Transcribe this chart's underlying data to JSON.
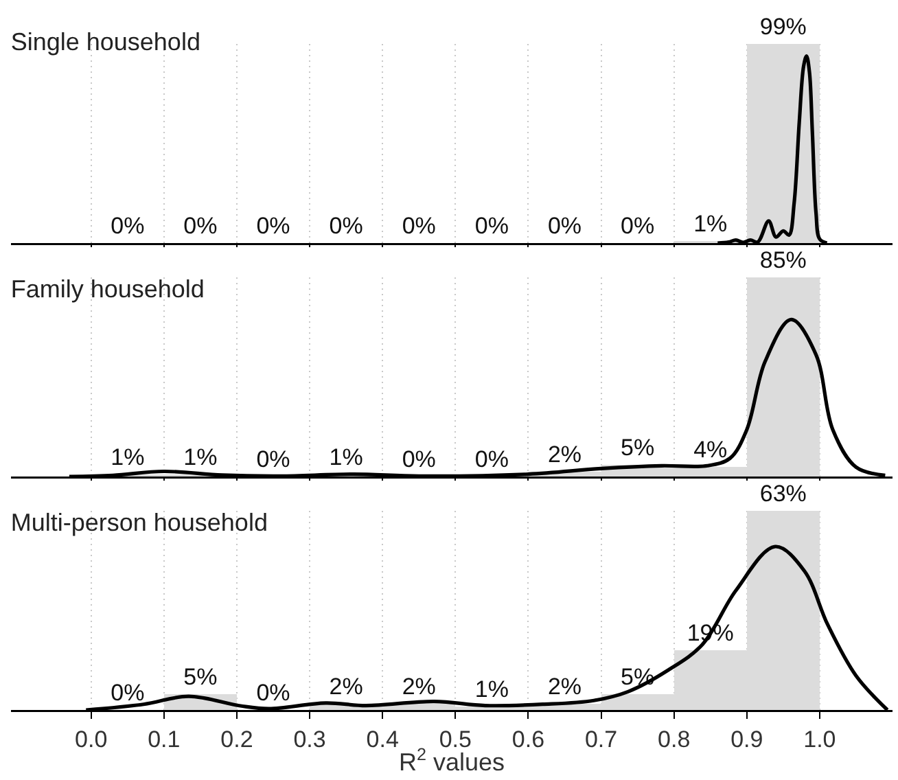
{
  "chart_data": [
    {
      "type": "histogram",
      "title": "Single household",
      "bins": [
        0,
        0.1,
        0.2,
        0.3,
        0.4,
        0.5,
        0.6,
        0.7,
        0.8,
        0.9,
        1.0
      ],
      "values": [
        0,
        0,
        0,
        0,
        0,
        0,
        0,
        0,
        1,
        99
      ],
      "value_labels": [
        "0%",
        "0%",
        "0%",
        "0%",
        "0%",
        "0%",
        "0%",
        "0%",
        "1%",
        "99%"
      ],
      "color": "#dcdcdc",
      "xlim": [
        -0.11,
        1.1
      ],
      "xticks": [
        0,
        0.1,
        0.2,
        0.3,
        0.4,
        0.5,
        0.6,
        0.7,
        0.8,
        0.9,
        1.0
      ],
      "tick_labels": false,
      "grid": "x",
      "series": [
        {
          "type": "line",
          "color": "#000000",
          "x": [
            0.86,
            0.875,
            0.885,
            0.895,
            0.905,
            0.915,
            0.93,
            0.94,
            0.95,
            0.958,
            0.965,
            0.972,
            0.978,
            0.982,
            0.986,
            0.99,
            0.995,
            1.0,
            1.01
          ],
          "values": [
            0,
            0.5,
            1.5,
            0.3,
            1.5,
            0.5,
            11,
            3,
            6,
            4,
            20,
            60,
            88,
            93,
            85,
            55,
            15,
            2,
            0
          ]
        }
      ]
    },
    {
      "type": "histogram",
      "title": "Family household",
      "bins": [
        0,
        0.1,
        0.2,
        0.3,
        0.4,
        0.5,
        0.6,
        0.7,
        0.8,
        0.9,
        1.0
      ],
      "values": [
        1,
        1,
        0,
        1,
        0,
        0,
        2,
        5,
        4,
        85
      ],
      "value_labels": [
        "1%",
        "1%",
        "0%",
        "1%",
        "0%",
        "0%",
        "2%",
        "5%",
        "4%",
        "85%"
      ],
      "color": "#dcdcdc",
      "xlim": [
        -0.11,
        1.1
      ],
      "xticks": [
        0,
        0.1,
        0.2,
        0.3,
        0.4,
        0.5,
        0.6,
        0.7,
        0.8,
        0.9,
        1.0
      ],
      "tick_labels": false,
      "grid": "x",
      "series": [
        {
          "type": "line",
          "color": "#000000",
          "x": [
            -0.03,
            0.03,
            0.1,
            0.18,
            0.26,
            0.36,
            0.45,
            0.6,
            0.7,
            0.783,
            0.846,
            0.877,
            0.9,
            0.925,
            0.961,
            0.995,
            1.018,
            1.05,
            1.09
          ],
          "values": [
            0,
            0.5,
            2.2,
            0.6,
            0.2,
            1,
            0.2,
            1,
            3.4,
            4.6,
            4.6,
            7.8,
            20,
            49,
            67,
            52,
            20,
            4,
            0.5
          ]
        }
      ]
    },
    {
      "type": "histogram",
      "title": "Multi-person household",
      "xlabel": "R$^{2}$ values",
      "bins": [
        0,
        0.1,
        0.2,
        0.3,
        0.4,
        0.5,
        0.6,
        0.7,
        0.8,
        0.9,
        1.0
      ],
      "values": [
        0,
        5,
        0,
        2,
        2,
        1,
        2,
        5,
        19,
        63
      ],
      "value_labels": [
        "0%",
        "5%",
        "0%",
        "2%",
        "2%",
        "1%",
        "2%",
        "5%",
        "19%",
        "63%"
      ],
      "color": "#dcdcdc",
      "xlim": [
        -0.11,
        1.1
      ],
      "xticks": [
        {
          "value": 0,
          "label": "0.0"
        },
        0.1,
        0.2,
        0.3,
        0.4,
        0.5,
        0.6,
        0.7,
        0.8,
        0.9,
        {
          "value": 1.0,
          "label": "1.0"
        }
      ],
      "grid": "x",
      "series": [
        {
          "type": "line",
          "color": "#000000",
          "x": [
            -0.007,
            0.072,
            0.134,
            0.205,
            0.244,
            0.322,
            0.377,
            0.471,
            0.541,
            0.62,
            0.69,
            0.737,
            0.792,
            0.839,
            0.885,
            0.939,
            0.979,
            1.011,
            1.05,
            1.093
          ],
          "values": [
            0,
            1.8,
            4.3,
            1.3,
            0.4,
            2.2,
            1.4,
            2.7,
            1.4,
            1.8,
            3,
            5.8,
            12.6,
            20.7,
            37.8,
            51.7,
            44,
            27,
            10.8,
            0
          ]
        }
      ]
    }
  ]
}
